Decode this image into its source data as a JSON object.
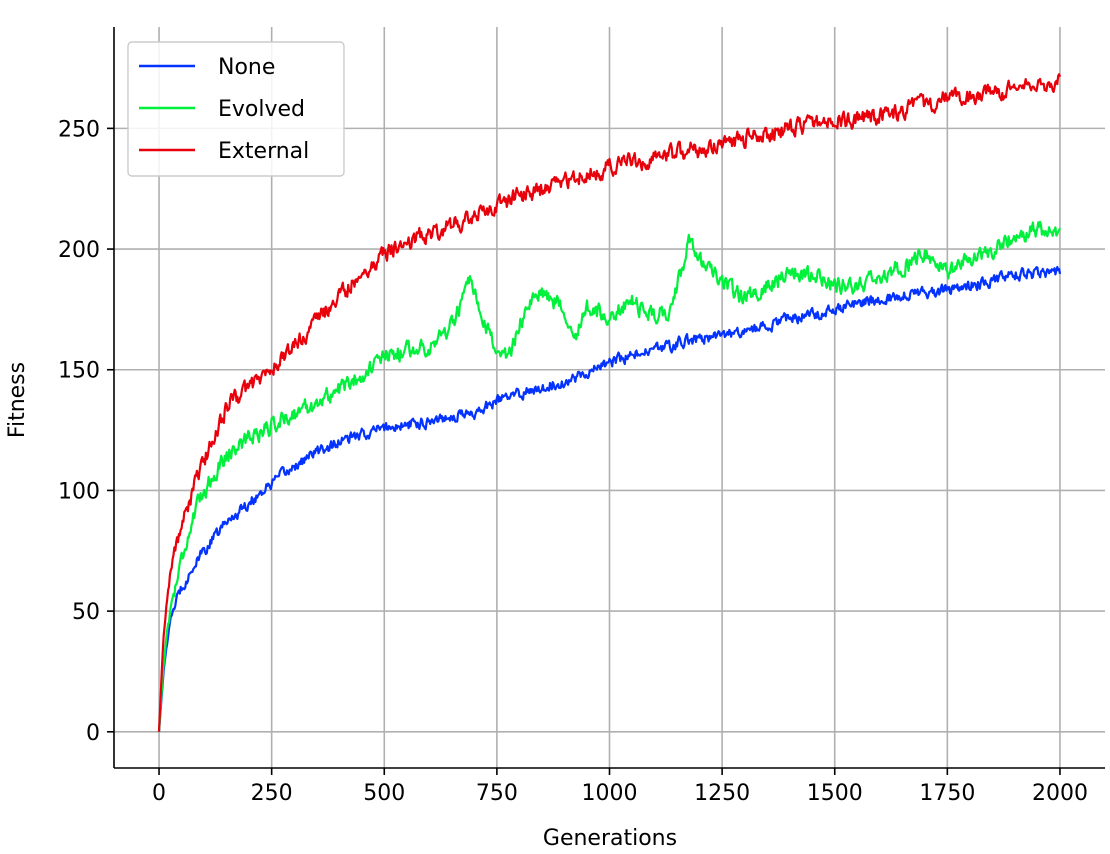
{
  "chart_data": {
    "type": "line",
    "title": "",
    "xlabel": "Generations",
    "ylabel": "Fitness",
    "xlim": [
      -100,
      2100
    ],
    "ylim": [
      -15,
      292
    ],
    "xticks": [
      0,
      250,
      500,
      750,
      1000,
      1250,
      1500,
      1750,
      2000
    ],
    "yticks": [
      0,
      50,
      100,
      150,
      200,
      250
    ],
    "grid": true,
    "legend_position": "top-left",
    "series": [
      {
        "name": "None",
        "color": "#0433ff",
        "noise": 2.0,
        "x": [
          0,
          10,
          20,
          30,
          50,
          75,
          100,
          150,
          200,
          250,
          300,
          350,
          400,
          450,
          500,
          550,
          600,
          650,
          700,
          750,
          800,
          850,
          900,
          950,
          1000,
          1050,
          1100,
          1150,
          1200,
          1250,
          1300,
          1350,
          1400,
          1450,
          1500,
          1550,
          1600,
          1650,
          1700,
          1750,
          1800,
          1850,
          1900,
          1950,
          2000
        ],
        "values": [
          0,
          25,
          40,
          50,
          60,
          68,
          75,
          87,
          95,
          103,
          110,
          116,
          120,
          123,
          126,
          127,
          129,
          131,
          132,
          137,
          140,
          143,
          145,
          149,
          153,
          156,
          158,
          161,
          163,
          164,
          166,
          168,
          171,
          173,
          175,
          178,
          179,
          181,
          182,
          183,
          185,
          187,
          189,
          190,
          191
        ]
      },
      {
        "name": "Evolved",
        "color": "#00f03c",
        "noise": 3.0,
        "x": [
          0,
          10,
          20,
          30,
          50,
          75,
          100,
          150,
          200,
          250,
          300,
          350,
          400,
          450,
          500,
          550,
          600,
          650,
          690,
          720,
          750,
          775,
          800,
          850,
          900,
          925,
          950,
          1000,
          1050,
          1100,
          1130,
          1160,
          1175,
          1210,
          1250,
          1300,
          1350,
          1400,
          1450,
          1500,
          1550,
          1600,
          1650,
          1700,
          1750,
          1800,
          1850,
          1900,
          1950,
          2000
        ],
        "values": [
          0,
          28,
          45,
          55,
          72,
          88,
          100,
          115,
          122,
          127,
          132,
          136,
          142,
          148,
          155,
          158,
          160,
          168,
          186,
          168,
          160,
          153,
          170,
          183,
          175,
          165,
          175,
          172,
          178,
          172,
          175,
          190,
          205,
          193,
          185,
          180,
          185,
          190,
          190,
          185,
          185,
          187,
          193,
          198,
          190,
          195,
          200,
          205,
          208,
          206
        ]
      },
      {
        "name": "External",
        "color": "#e8000b",
        "noise": 3.0,
        "x": [
          0,
          10,
          20,
          30,
          50,
          75,
          100,
          150,
          200,
          250,
          300,
          350,
          400,
          450,
          500,
          550,
          600,
          650,
          700,
          750,
          800,
          850,
          900,
          950,
          1000,
          1050,
          1100,
          1150,
          1200,
          1250,
          1300,
          1350,
          1400,
          1450,
          1500,
          1550,
          1600,
          1650,
          1700,
          1750,
          1800,
          1850,
          1900,
          1950,
          2000
        ],
        "values": [
          0,
          40,
          60,
          72,
          85,
          100,
          112,
          135,
          143,
          150,
          160,
          170,
          180,
          190,
          198,
          203,
          207,
          210,
          213,
          218,
          222,
          225,
          228,
          231,
          234,
          236,
          238,
          240,
          241,
          243,
          246,
          248,
          250,
          252,
          253,
          254,
          255,
          257,
          260,
          262,
          263,
          264,
          266,
          268,
          270
        ]
      }
    ]
  }
}
